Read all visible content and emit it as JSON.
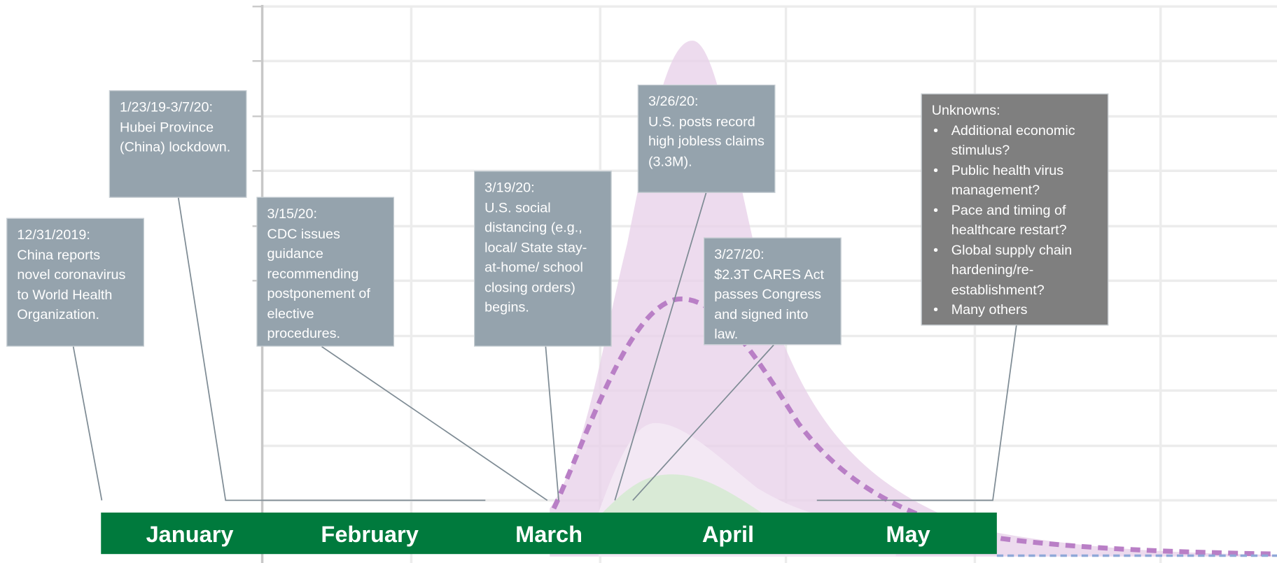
{
  "months": [
    "January",
    "February",
    "March",
    "April",
    "May"
  ],
  "events": [
    {
      "date": "12/31/2019:",
      "text": "China reports novel coronavirus to World Health Organization."
    },
    {
      "date": "1/23/19-3/7/20:",
      "text": "Hubei Province (China) lockdown."
    },
    {
      "date": "3/15/20:",
      "text": "CDC issues guidance recommending postponement of elective procedures."
    },
    {
      "date": "3/19/20:",
      "text": "U.S. social distancing (e.g., local/ State stay-at-home/ school closing orders) begins."
    },
    {
      "date": "3/26/20:",
      "text": "U.S. posts record high jobless claims (3.3M)."
    },
    {
      "date": "3/27/20:",
      "text": "$2.3T CARES Act passes Congress and signed into law."
    }
  ],
  "unknowns": {
    "title": "Unknowns:",
    "items": [
      "Additional economic stimulus?",
      "Public health virus management?",
      "Pace and timing of healthcare restart?",
      "Global supply chain hardening/re-establishment?",
      "Many others"
    ]
  }
}
